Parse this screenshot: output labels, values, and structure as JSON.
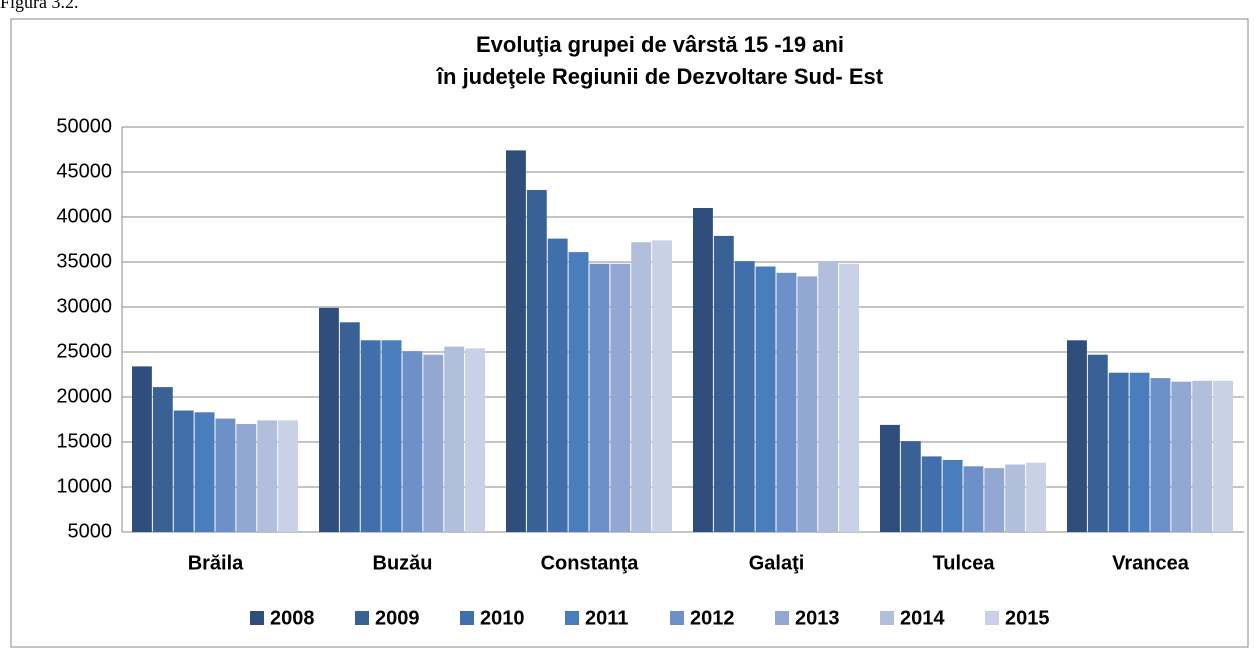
{
  "caption": "Figura 3.2.",
  "chart_data": {
    "type": "bar",
    "title": "Evoluţia grupei de vârstă 15 -19 ani",
    "subtitle": "în judeţele Regiunii de Dezvoltare Sud- Est",
    "categories": [
      "Brăila",
      "Buzău",
      "Constanţa",
      "Galaţi",
      "Tulcea",
      "Vrancea"
    ],
    "series": [
      {
        "name": "2008",
        "color": "#2f4e7c",
        "values": [
          23400,
          29900,
          47400,
          41000,
          16900,
          26300
        ]
      },
      {
        "name": "2009",
        "color": "#3a6196",
        "values": [
          21100,
          28300,
          43000,
          37900,
          15100,
          24700
        ]
      },
      {
        "name": "2010",
        "color": "#416fab",
        "values": [
          18500,
          26300,
          37600,
          35100,
          13400,
          22700
        ]
      },
      {
        "name": "2011",
        "color": "#4a7dbb",
        "values": [
          18300,
          26300,
          36100,
          34500,
          13000,
          22700
        ]
      },
      {
        "name": "2012",
        "color": "#6e90c8",
        "values": [
          17600,
          25100,
          34800,
          33800,
          12300,
          22100
        ]
      },
      {
        "name": "2013",
        "color": "#93a7d3",
        "values": [
          17000,
          24700,
          34800,
          33400,
          12100,
          21700
        ]
      },
      {
        "name": "2014",
        "color": "#b1bfdd",
        "values": [
          17400,
          25600,
          37200,
          35100,
          12500,
          21800
        ]
      },
      {
        "name": "2015",
        "color": "#c8d1e6",
        "values": [
          17400,
          25400,
          37400,
          34800,
          12700,
          21800
        ]
      }
    ],
    "ylim": [
      5000,
      50000
    ],
    "yticks": [
      5000,
      10000,
      15000,
      20000,
      25000,
      30000,
      35000,
      40000,
      45000,
      50000
    ],
    "grid": true,
    "legend": "bottom"
  }
}
